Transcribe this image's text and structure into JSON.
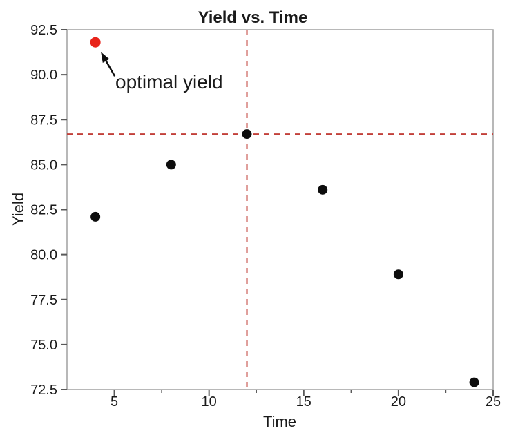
{
  "figure": {
    "background": "#ffffff"
  },
  "chart_data": {
    "type": "scatter",
    "title": "Yield vs. Time",
    "xlabel": "Time",
    "ylabel": "Yield",
    "xlim": [
      2.5,
      25
    ],
    "ylim": [
      72.5,
      92.5
    ],
    "x_major_ticks": [
      5,
      10,
      15,
      20,
      25
    ],
    "x_minor_ticks": [
      7.5,
      12.5,
      17.5,
      22.5
    ],
    "y_major_ticks": [
      72.5,
      75.0,
      77.5,
      80.0,
      82.5,
      85.0,
      87.5,
      90.0,
      92.5
    ],
    "grid": false,
    "legend": "none",
    "points": [
      {
        "x": 4,
        "y": 91.8,
        "color": "red",
        "highlight": true
      },
      {
        "x": 4,
        "y": 82.1,
        "color": "black"
      },
      {
        "x": 8,
        "y": 85.0,
        "color": "black"
      },
      {
        "x": 12,
        "y": 86.7,
        "color": "black"
      },
      {
        "x": 16,
        "y": 83.6,
        "color": "black"
      },
      {
        "x": 20,
        "y": 78.9,
        "color": "black"
      },
      {
        "x": 24,
        "y": 72.9,
        "color": "black"
      }
    ],
    "reference_lines": {
      "vertical_x": 12,
      "horizontal_y": 86.7,
      "style": "dashed"
    },
    "annotation": {
      "text": "optimal yield",
      "points_to": {
        "x": 4,
        "y": 91.8
      }
    },
    "colors": {
      "point_black": "#0d0d0d",
      "point_red": "#e8231a",
      "reference_line": "#c2403a",
      "axis_frame": "#a0a0a0",
      "tick": "#595959",
      "text": "#1a1a1a"
    }
  }
}
